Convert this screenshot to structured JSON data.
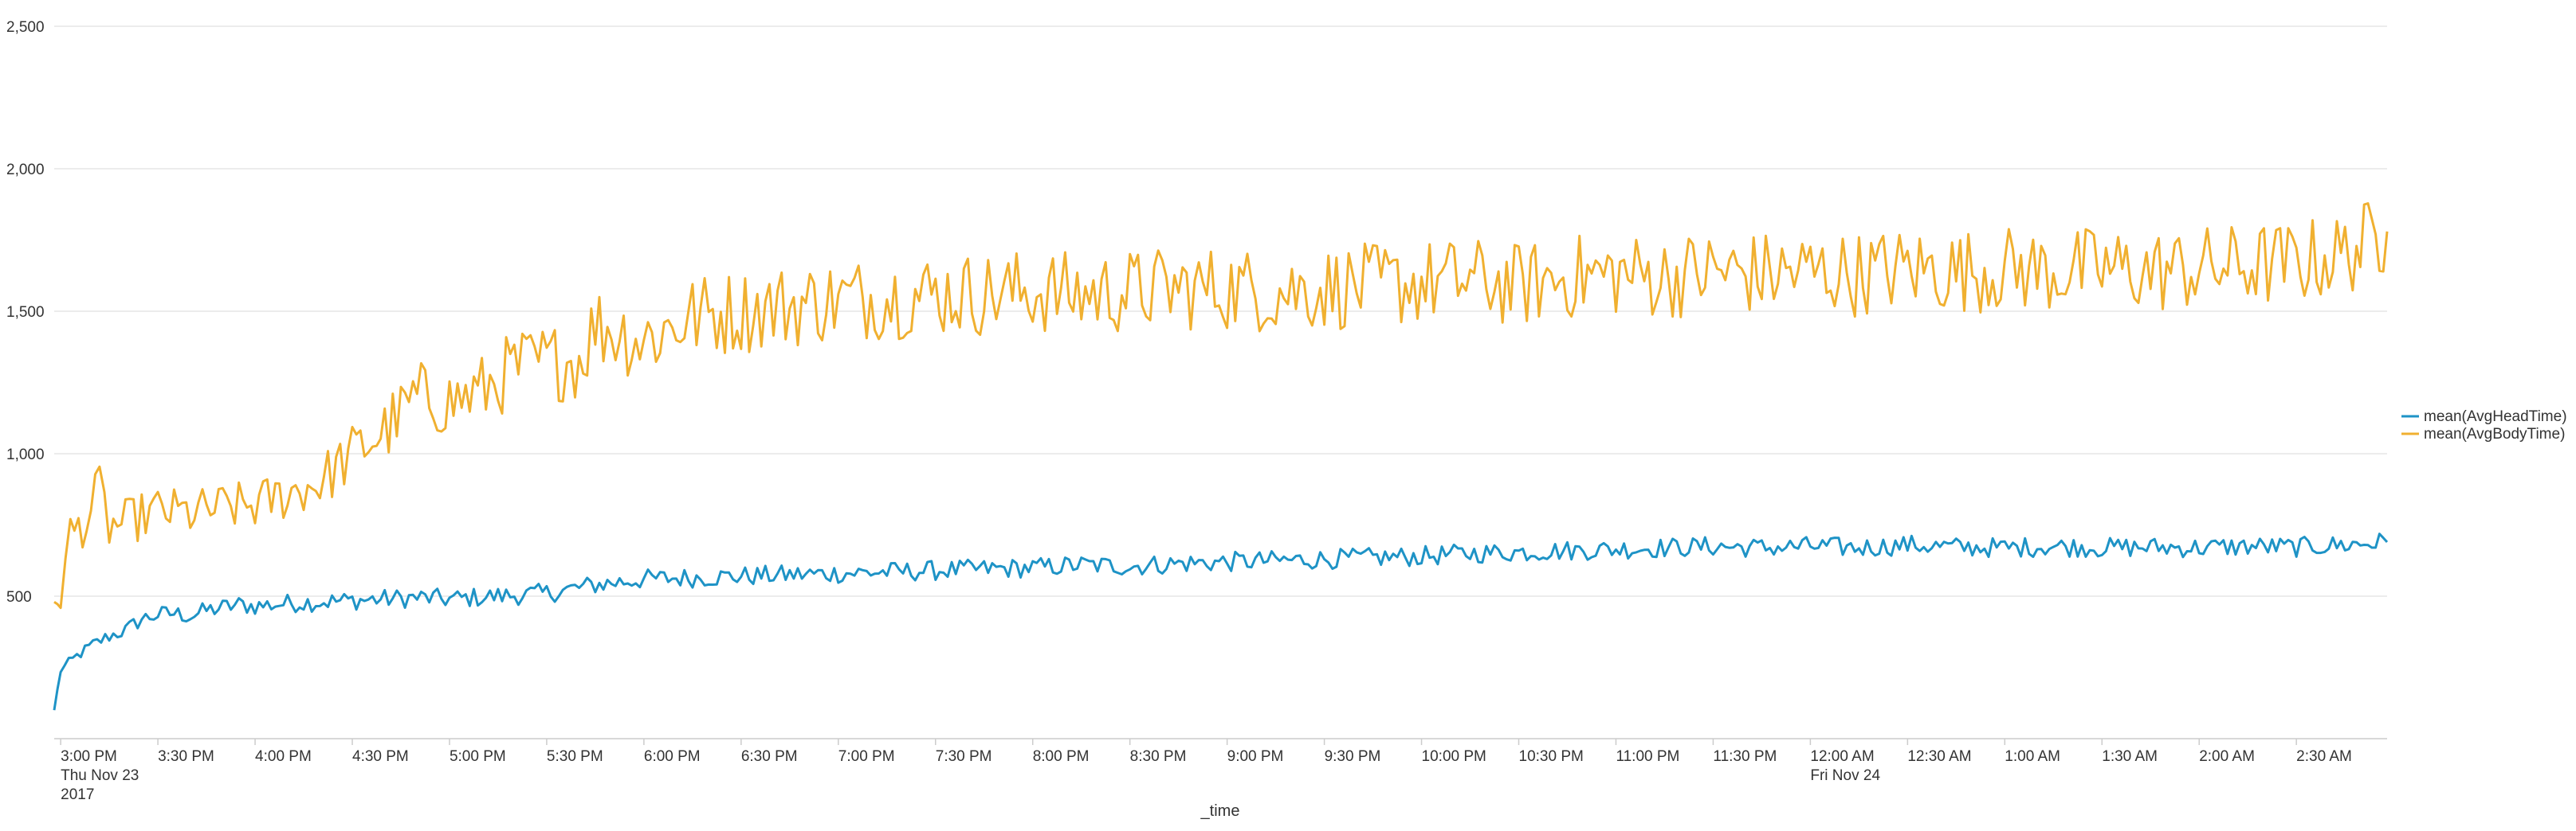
{
  "chart_data": {
    "type": "line",
    "title": "",
    "xlabel": "_time",
    "ylabel": "",
    "ylim": [
      0,
      2500
    ],
    "y_ticks": [
      {
        "value": 500,
        "label": "500"
      },
      {
        "value": 1000,
        "label": "1,000"
      },
      {
        "value": 1500,
        "label": "1,500"
      },
      {
        "value": 2000,
        "label": "2,000"
      },
      {
        "value": 2500,
        "label": "2,500"
      }
    ],
    "xlim": [
      "2017-11-23 14:58",
      "2017-11-24 02:58"
    ],
    "x_ticks": [
      {
        "value": "2017-11-23 15:00",
        "label": "3:00 PM",
        "sub": [
          "Thu Nov 23",
          "2017"
        ]
      },
      {
        "value": "2017-11-23 15:30",
        "label": "3:30 PM",
        "sub": []
      },
      {
        "value": "2017-11-23 16:00",
        "label": "4:00 PM",
        "sub": []
      },
      {
        "value": "2017-11-23 16:30",
        "label": "4:30 PM",
        "sub": []
      },
      {
        "value": "2017-11-23 17:00",
        "label": "5:00 PM",
        "sub": []
      },
      {
        "value": "2017-11-23 17:30",
        "label": "5:30 PM",
        "sub": []
      },
      {
        "value": "2017-11-23 18:00",
        "label": "6:00 PM",
        "sub": []
      },
      {
        "value": "2017-11-23 18:30",
        "label": "6:30 PM",
        "sub": []
      },
      {
        "value": "2017-11-23 19:00",
        "label": "7:00 PM",
        "sub": []
      },
      {
        "value": "2017-11-23 19:30",
        "label": "7:30 PM",
        "sub": []
      },
      {
        "value": "2017-11-23 20:00",
        "label": "8:00 PM",
        "sub": []
      },
      {
        "value": "2017-11-23 20:30",
        "label": "8:30 PM",
        "sub": []
      },
      {
        "value": "2017-11-23 21:00",
        "label": "9:00 PM",
        "sub": []
      },
      {
        "value": "2017-11-23 21:30",
        "label": "9:30 PM",
        "sub": []
      },
      {
        "value": "2017-11-23 22:00",
        "label": "10:00 PM",
        "sub": []
      },
      {
        "value": "2017-11-23 22:30",
        "label": "10:30 PM",
        "sub": []
      },
      {
        "value": "2017-11-23 23:00",
        "label": "11:00 PM",
        "sub": []
      },
      {
        "value": "2017-11-23 23:30",
        "label": "11:30 PM",
        "sub": []
      },
      {
        "value": "2017-11-24 00:00",
        "label": "12:00 AM",
        "sub": [
          "Fri Nov 24"
        ]
      },
      {
        "value": "2017-11-24 00:30",
        "label": "12:30 AM",
        "sub": []
      },
      {
        "value": "2017-11-24 01:00",
        "label": "1:00 AM",
        "sub": []
      },
      {
        "value": "2017-11-24 01:30",
        "label": "1:30 AM",
        "sub": []
      },
      {
        "value": "2017-11-24 02:00",
        "label": "2:00 AM",
        "sub": []
      },
      {
        "value": "2017-11-24 02:30",
        "label": "2:30 AM",
        "sub": []
      }
    ],
    "grid": true,
    "legend_position": "right",
    "series": [
      {
        "name": "mean(AvgHeadTime)",
        "color": "#1e93c6",
        "points": [
          [
            "2017-11-23 14:58",
            100
          ],
          [
            "2017-11-23 15:00",
            240
          ],
          [
            "2017-11-23 15:05",
            290
          ],
          [
            "2017-11-23 15:10",
            330
          ],
          [
            "2017-11-23 15:15",
            360
          ],
          [
            "2017-11-23 15:20",
            380
          ],
          [
            "2017-11-23 15:25",
            420
          ],
          [
            "2017-11-23 15:30",
            435
          ],
          [
            "2017-11-23 15:35",
            440
          ],
          [
            "2017-11-23 15:40",
            430
          ],
          [
            "2017-11-23 15:45",
            450
          ],
          [
            "2017-11-23 15:50",
            460
          ],
          [
            "2017-11-23 15:55",
            470
          ],
          [
            "2017-11-23 16:00",
            465
          ],
          [
            "2017-11-23 16:10",
            475
          ],
          [
            "2017-11-23 16:20",
            480
          ],
          [
            "2017-11-23 16:30",
            485
          ],
          [
            "2017-11-23 16:40",
            490
          ],
          [
            "2017-11-23 16:50",
            495
          ],
          [
            "2017-11-23 17:00",
            490
          ],
          [
            "2017-11-23 17:15",
            500
          ],
          [
            "2017-11-23 17:30",
            510
          ],
          [
            "2017-11-23 17:45",
            540
          ],
          [
            "2017-11-23 18:00",
            560
          ],
          [
            "2017-11-23 18:15",
            565
          ],
          [
            "2017-11-23 18:30",
            570
          ],
          [
            "2017-11-23 18:45",
            575
          ],
          [
            "2017-11-23 19:00",
            580
          ],
          [
            "2017-11-23 19:15",
            585
          ],
          [
            "2017-11-23 19:30",
            590
          ],
          [
            "2017-11-23 19:45",
            595
          ],
          [
            "2017-11-23 20:00",
            600
          ],
          [
            "2017-11-23 20:15",
            610
          ],
          [
            "2017-11-23 20:30",
            605
          ],
          [
            "2017-11-23 20:45",
            615
          ],
          [
            "2017-11-23 21:00",
            620
          ],
          [
            "2017-11-23 21:15",
            625
          ],
          [
            "2017-11-23 21:30",
            630
          ],
          [
            "2017-11-23 21:45",
            635
          ],
          [
            "2017-11-23 22:00",
            640
          ],
          [
            "2017-11-23 22:15",
            650
          ],
          [
            "2017-11-23 22:30",
            655
          ],
          [
            "2017-11-23 22:45",
            660
          ],
          [
            "2017-11-23 23:00",
            665
          ],
          [
            "2017-11-23 23:15",
            670
          ],
          [
            "2017-11-23 23:30",
            675
          ],
          [
            "2017-11-23 23:45",
            670
          ],
          [
            "2017-11-24 00:00",
            675
          ],
          [
            "2017-11-24 00:15",
            670
          ],
          [
            "2017-11-24 00:30",
            680
          ],
          [
            "2017-11-24 00:45",
            672
          ],
          [
            "2017-11-24 01:00",
            670
          ],
          [
            "2017-11-24 01:15",
            675
          ],
          [
            "2017-11-24 01:30",
            670
          ],
          [
            "2017-11-24 01:45",
            672
          ],
          [
            "2017-11-24 02:00",
            670
          ],
          [
            "2017-11-24 02:15",
            675
          ],
          [
            "2017-11-24 02:30",
            672
          ],
          [
            "2017-11-24 02:45",
            680
          ],
          [
            "2017-11-24 02:58",
            690
          ]
        ]
      },
      {
        "name": "mean(AvgBodyTime)",
        "color": "#f0b030",
        "points": [
          [
            "2017-11-23 14:58",
            480
          ],
          [
            "2017-11-23 15:00",
            500
          ],
          [
            "2017-11-23 15:03",
            720
          ],
          [
            "2017-11-23 15:08",
            760
          ],
          [
            "2017-11-23 15:12",
            880
          ],
          [
            "2017-11-23 15:15",
            740
          ],
          [
            "2017-11-23 15:20",
            760
          ],
          [
            "2017-11-23 15:30",
            800
          ],
          [
            "2017-11-23 15:40",
            790
          ],
          [
            "2017-11-23 15:50",
            810
          ],
          [
            "2017-11-23 16:00",
            820
          ],
          [
            "2017-11-23 16:10",
            860
          ],
          [
            "2017-11-23 16:20",
            900
          ],
          [
            "2017-11-23 16:30",
            1000
          ],
          [
            "2017-11-23 16:40",
            1080
          ],
          [
            "2017-11-23 16:50",
            1200
          ],
          [
            "2017-11-23 17:00",
            1180
          ],
          [
            "2017-11-23 17:10",
            1220
          ],
          [
            "2017-11-23 17:20",
            1300
          ],
          [
            "2017-11-23 17:30",
            1320
          ],
          [
            "2017-11-23 17:40",
            1330
          ],
          [
            "2017-11-23 17:45",
            1450
          ],
          [
            "2017-11-23 18:00",
            1400
          ],
          [
            "2017-11-23 18:15",
            1480
          ],
          [
            "2017-11-23 18:30",
            1500
          ],
          [
            "2017-11-23 18:45",
            1520
          ],
          [
            "2017-11-23 19:00",
            1540
          ],
          [
            "2017-11-23 19:15",
            1550
          ],
          [
            "2017-11-23 19:30",
            1560
          ],
          [
            "2017-11-23 19:45",
            1560
          ],
          [
            "2017-11-23 20:00",
            1570
          ],
          [
            "2017-11-23 20:15",
            1560
          ],
          [
            "2017-11-23 20:30",
            1570
          ],
          [
            "2017-11-23 20:45",
            1580
          ],
          [
            "2017-11-23 21:00",
            1580
          ],
          [
            "2017-11-23 21:15",
            1570
          ],
          [
            "2017-11-23 21:30",
            1580
          ],
          [
            "2017-11-23 21:45",
            1590
          ],
          [
            "2017-11-23 22:00",
            1600
          ],
          [
            "2017-11-23 22:15",
            1610
          ],
          [
            "2017-11-23 22:30",
            1590
          ],
          [
            "2017-11-23 22:45",
            1620
          ],
          [
            "2017-11-23 23:00",
            1630
          ],
          [
            "2017-11-23 23:15",
            1620
          ],
          [
            "2017-11-23 23:30",
            1640
          ],
          [
            "2017-11-23 23:45",
            1630
          ],
          [
            "2017-11-24 00:00",
            1640
          ],
          [
            "2017-11-24 00:15",
            1630
          ],
          [
            "2017-11-24 00:30",
            1650
          ],
          [
            "2017-11-24 00:45",
            1640
          ],
          [
            "2017-11-24 01:00",
            1650
          ],
          [
            "2017-11-24 01:15",
            1640
          ],
          [
            "2017-11-24 01:30",
            1650
          ],
          [
            "2017-11-24 01:45",
            1640
          ],
          [
            "2017-11-24 02:00",
            1650
          ],
          [
            "2017-11-24 02:15",
            1660
          ],
          [
            "2017-11-24 02:30",
            1670
          ],
          [
            "2017-11-24 02:45",
            1700
          ],
          [
            "2017-11-24 02:58",
            1780
          ]
        ]
      }
    ]
  }
}
